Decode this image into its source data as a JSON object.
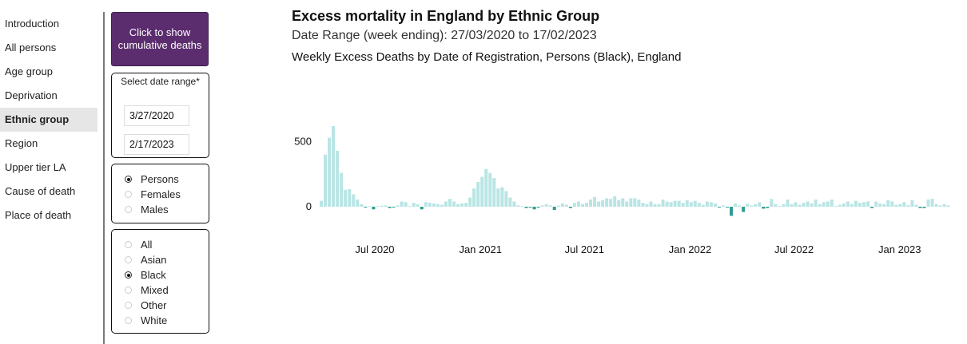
{
  "sidebar": {
    "items": [
      {
        "label": "Introduction",
        "active": false
      },
      {
        "label": "All persons",
        "active": false
      },
      {
        "label": "Age group",
        "active": false
      },
      {
        "label": "Deprivation",
        "active": false
      },
      {
        "label": "Ethnic group",
        "active": true
      },
      {
        "label": "Region",
        "active": false
      },
      {
        "label": "Upper tier LA",
        "active": false
      },
      {
        "label": "Cause of death",
        "active": false
      },
      {
        "label": "Place of death",
        "active": false
      }
    ]
  },
  "controls": {
    "cumulative_button": "Click to show cumulative deaths",
    "date_range_label": "Select date range*",
    "start_date": "3/27/2020",
    "end_date": "2/17/2023",
    "sex_options": [
      {
        "label": "Persons",
        "selected": true
      },
      {
        "label": "Females",
        "selected": false
      },
      {
        "label": "Males",
        "selected": false
      }
    ],
    "ethnic_options": [
      {
        "label": "All",
        "selected": false
      },
      {
        "label": "Asian",
        "selected": false
      },
      {
        "label": "Black",
        "selected": true
      },
      {
        "label": "Mixed",
        "selected": false
      },
      {
        "label": "Other",
        "selected": false
      },
      {
        "label": "White",
        "selected": false
      }
    ]
  },
  "main": {
    "title": "Excess mortality in England by Ethnic Group",
    "subtitle": "Date Range (week ending): 27/03/2020 to 17/02/2023"
  },
  "colors": {
    "positive_bar": "#b9e5e4",
    "negative_bar": "#2e9c91",
    "button_bg": "#5b2d6e"
  },
  "chart_data": {
    "type": "bar",
    "title": "Weekly Excess Deaths by Date of Registration, Persons (Black), England",
    "x_start": "2020-03-27",
    "x_interval_days": 7,
    "y_ticks": [
      0,
      500
    ],
    "x_ticks": [
      "Jul 2020",
      "Jan 2021",
      "Jul 2021",
      "Jan 2022",
      "Jul 2022",
      "Jan 2023"
    ],
    "values": [
      45,
      400,
      530,
      620,
      430,
      260,
      130,
      135,
      95,
      55,
      20,
      -5,
      5,
      -20,
      5,
      8,
      10,
      -10,
      -5,
      10,
      40,
      35,
      5,
      30,
      20,
      -20,
      35,
      30,
      25,
      20,
      15,
      40,
      60,
      40,
      20,
      25,
      30,
      70,
      140,
      190,
      230,
      290,
      260,
      220,
      140,
      150,
      120,
      70,
      40,
      10,
      5,
      -10,
      -5,
      -20,
      -5,
      10,
      20,
      10,
      -25,
      10,
      25,
      15,
      -10,
      30,
      40,
      20,
      30,
      55,
      75,
      40,
      50,
      65,
      60,
      80,
      50,
      65,
      40,
      65,
      65,
      55,
      30,
      20,
      40,
      20,
      20,
      55,
      40,
      35,
      45,
      45,
      30,
      50,
      35,
      45,
      30,
      15,
      40,
      35,
      25,
      -3,
      10,
      -3,
      -70,
      25,
      10,
      -40,
      25,
      10,
      20,
      35,
      -15,
      -10,
      60,
      20,
      5,
      20,
      55,
      20,
      35,
      15,
      30,
      40,
      25,
      55,
      20,
      35,
      40,
      55,
      5,
      15,
      25,
      40,
      20,
      45,
      30,
      35,
      40,
      -10,
      40,
      25,
      20,
      50,
      40,
      15,
      20,
      35,
      10,
      50,
      15,
      -10,
      -10,
      55,
      60,
      20,
      10,
      20,
      10
    ]
  }
}
